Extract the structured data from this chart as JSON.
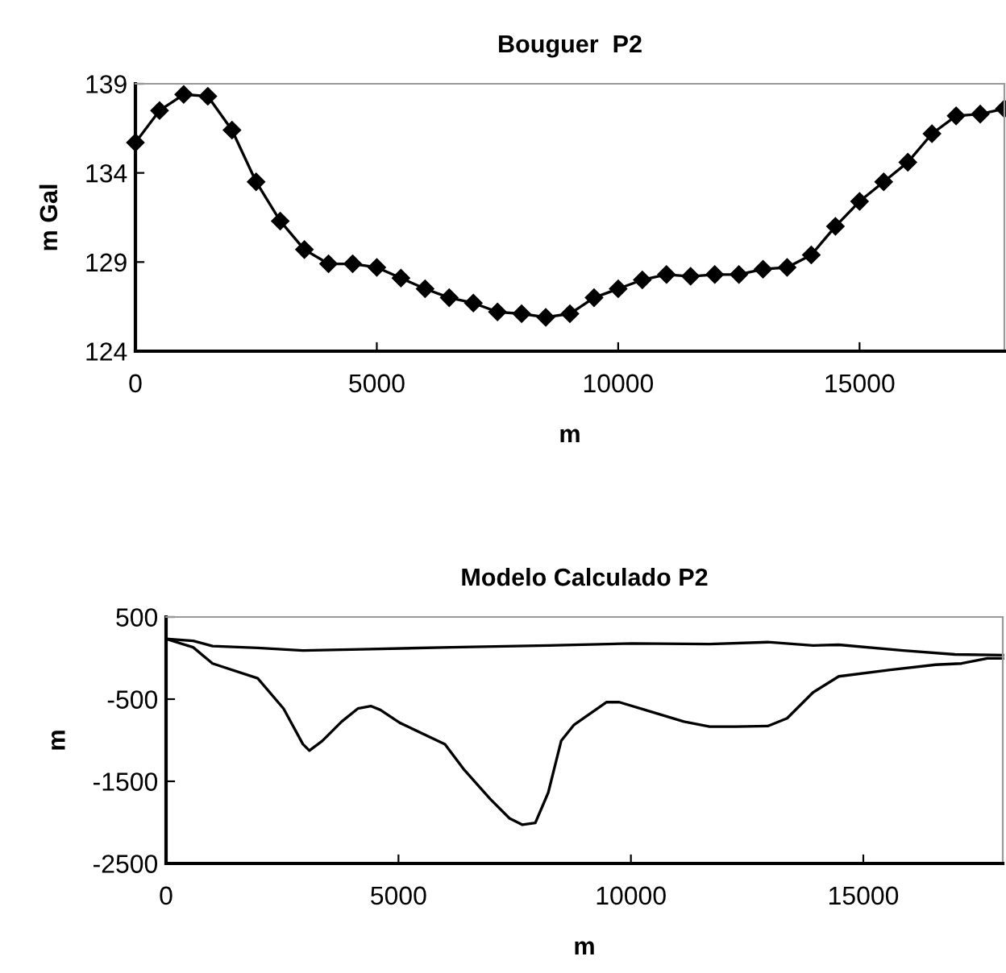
{
  "chart_data": [
    {
      "type": "line",
      "title": "Bouguer  P2",
      "xlabel": "m",
      "ylabel": "m Gal",
      "marker": "diamond",
      "line_style": "solid",
      "grid": false,
      "legend": false,
      "xlim": [
        0,
        18000
      ],
      "ylim": [
        124,
        139
      ],
      "xticks": [
        0,
        5000,
        10000,
        15000
      ],
      "yticks": [
        124,
        129,
        134,
        139
      ],
      "series": [
        {
          "color": "#000000",
          "x": [
            0,
            500,
            1000,
            1500,
            2000,
            2500,
            3000,
            3500,
            4000,
            4500,
            5000,
            5500,
            6000,
            6500,
            7000,
            7500,
            8000,
            8500,
            9000,
            9500,
            10000,
            10500,
            11000,
            11500,
            12000,
            12500,
            13000,
            13500,
            14000,
            14500,
            15000,
            15500,
            16000,
            16500,
            17000,
            17500,
            18000
          ],
          "values": [
            135.7,
            137.5,
            138.4,
            138.3,
            136.4,
            133.5,
            131.3,
            129.7,
            128.9,
            128.9,
            128.7,
            128.1,
            127.5,
            127.0,
            126.7,
            126.2,
            126.1,
            125.9,
            126.1,
            127.0,
            127.5,
            128.0,
            128.3,
            128.2,
            128.3,
            128.3,
            128.6,
            128.7,
            129.4,
            131.0,
            132.4,
            133.5,
            134.6,
            136.2,
            137.2,
            137.3,
            137.6
          ]
        }
      ]
    },
    {
      "type": "line",
      "title": "Modelo Calculado P2",
      "xlabel": "m",
      "ylabel": "m",
      "marker": "none",
      "line_style": "solid",
      "grid": false,
      "legend": false,
      "xlim": [
        0,
        18000
      ],
      "ylim": [
        -2500,
        500
      ],
      "xticks": [
        0,
        5000,
        10000,
        15000
      ],
      "yticks": [
        -2500,
        -1500,
        -500,
        500
      ],
      "series": [
        {
          "color": "#000000",
          "x": [
            0,
            583,
            1000,
            1972,
            2944,
            4194,
            6139,
            8222,
            10028,
            11694,
            12944,
            13917,
            14472,
            15861,
            16972,
            18000
          ],
          "values": [
            233,
            209,
            146,
            123,
            92,
            107,
            131,
            154,
            178,
            170,
            194,
            154,
            162,
            92,
            44,
            36
          ]
        },
        {
          "color": "#000000",
          "x": [
            0,
            583,
            1000,
            1972,
            2528,
            2944,
            3083,
            3361,
            3778,
            4125,
            4403,
            4611,
            5028,
            6000,
            6417,
            6972,
            7389,
            7667,
            7944,
            8222,
            8500,
            8778,
            9472,
            9750,
            10306,
            11139,
            11694,
            12250,
            12944,
            13361,
            13917,
            14472,
            15583,
            16556,
            17111,
            17667,
            18000
          ],
          "values": [
            233,
            131,
            -66,
            -246,
            -615,
            -1048,
            -1126,
            -1008,
            -773,
            -615,
            -584,
            -631,
            -788,
            -1048,
            -1362,
            -1715,
            -1951,
            -2029,
            -2006,
            -1637,
            -1008,
            -812,
            -537,
            -537,
            -631,
            -773,
            -835,
            -835,
            -828,
            -733,
            -419,
            -223,
            -144,
            -81,
            -66,
            -3,
            -3
          ]
        }
      ]
    }
  ]
}
